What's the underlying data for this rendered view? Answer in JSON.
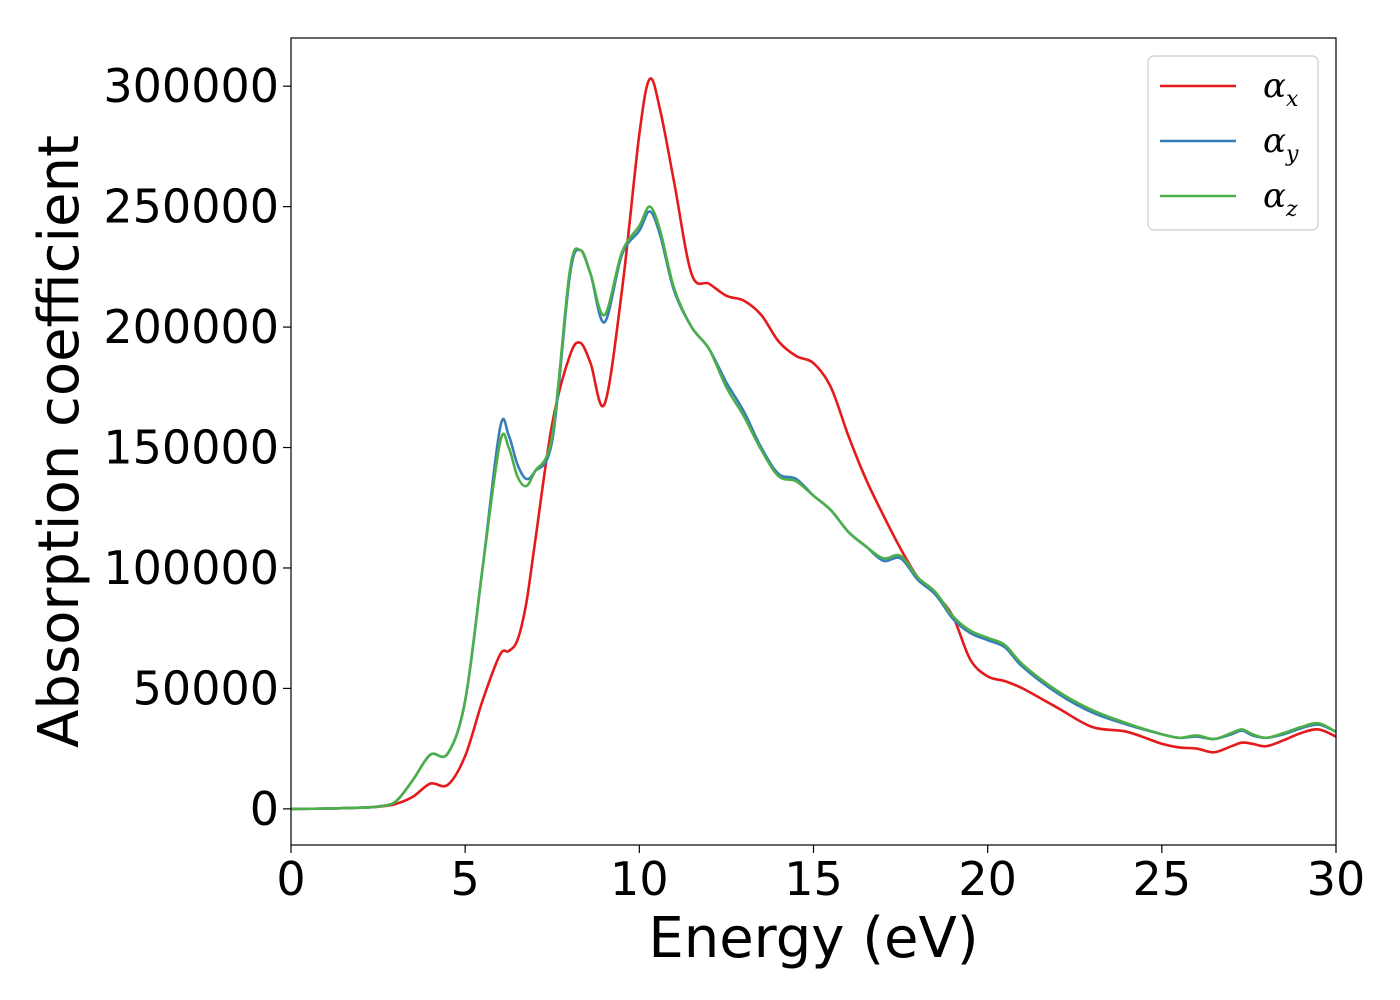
{
  "chart_data": {
    "type": "line",
    "title": "",
    "xlabel": "Energy (eV)",
    "ylabel": "Absorption coefficient",
    "xlim": [
      0,
      30
    ],
    "ylim": [
      -15000,
      320000
    ],
    "xticks": [
      0,
      5,
      10,
      15,
      20,
      25,
      30
    ],
    "yticks": [
      0,
      50000,
      100000,
      150000,
      200000,
      250000,
      300000
    ],
    "grid": false,
    "legend_position": "top-right",
    "x": [
      0,
      1,
      2,
      2.5,
      3,
      3.5,
      4,
      4.5,
      5,
      5.5,
      6,
      6.25,
      6.5,
      6.75,
      7,
      7.5,
      8,
      8.3,
      8.6,
      9,
      9.5,
      10,
      10.3,
      10.6,
      11,
      11.5,
      12,
      12.5,
      13,
      13.5,
      14,
      14.5,
      15,
      15.5,
      16,
      16.5,
      17,
      17.5,
      18,
      18.5,
      19,
      19.5,
      20,
      20.5,
      21,
      22,
      23,
      24,
      25,
      25.5,
      26,
      26.5,
      27,
      27.3,
      27.6,
      28,
      28.5,
      29,
      29.5,
      30
    ],
    "series": [
      {
        "name": "α",
        "subscript": "x",
        "color": "#e41a1c",
        "values": [
          0,
          100,
          500,
          900,
          2000,
          5000,
          10500,
          10000,
          22000,
          45000,
          64000,
          65500,
          70000,
          85000,
          110000,
          160000,
          188000,
          193500,
          185000,
          168000,
          215000,
          280000,
          303000,
          290000,
          260000,
          222000,
          218000,
          213000,
          211000,
          205000,
          194000,
          188000,
          185000,
          175000,
          155000,
          137000,
          122000,
          108000,
          96000,
          89000,
          80000,
          62000,
          55000,
          53000,
          50000,
          42000,
          34000,
          32000,
          27000,
          25500,
          25000,
          23500,
          26000,
          27500,
          27000,
          26000,
          28500,
          31500,
          33000,
          30000
        ]
      },
      {
        "name": "α",
        "subscript": "y",
        "color": "#377eb8",
        "values": [
          0,
          100,
          500,
          1000,
          3000,
          12000,
          22500,
          23000,
          45000,
          100000,
          158000,
          155000,
          143000,
          137000,
          140000,
          153000,
          221000,
          232000,
          222000,
          202000,
          230000,
          240000,
          248000,
          238000,
          215000,
          200000,
          191000,
          177000,
          165000,
          150000,
          139000,
          137000,
          130000,
          124000,
          115000,
          109000,
          103000,
          104000,
          95000,
          89000,
          79000,
          73000,
          70000,
          67000,
          59000,
          48000,
          40000,
          35000,
          31000,
          29500,
          30000,
          29000,
          31000,
          32500,
          30500,
          29500,
          31000,
          33500,
          35000,
          32000
        ]
      },
      {
        "name": "α",
        "subscript": "z",
        "color": "#4daf4a",
        "values": [
          0,
          100,
          500,
          1000,
          3000,
          12000,
          22500,
          23000,
          45000,
          100000,
          152000,
          150000,
          138000,
          134000,
          140000,
          155000,
          223000,
          232000,
          222000,
          205000,
          231000,
          242000,
          250000,
          240000,
          216000,
          200000,
          191000,
          175000,
          163000,
          149000,
          138000,
          136000,
          130000,
          124000,
          115000,
          109000,
          104000,
          105000,
          96000,
          90000,
          80000,
          74000,
          71000,
          68000,
          60000,
          49000,
          41000,
          35500,
          31000,
          29500,
          30500,
          29000,
          31500,
          33000,
          31000,
          29500,
          31500,
          34000,
          35500,
          32000
        ]
      }
    ]
  }
}
